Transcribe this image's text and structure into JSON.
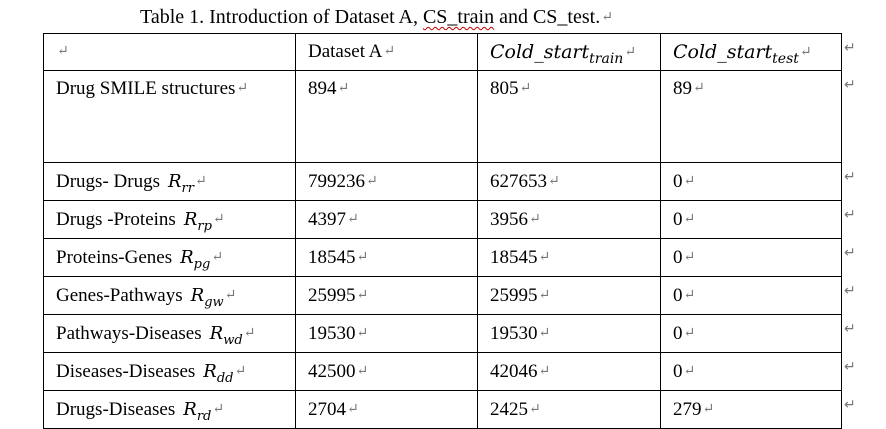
{
  "caption": {
    "prefix": "Table 1. Introduction of Dataset A, ",
    "cs_train": "CS_train",
    "suffix": " and CS_test."
  },
  "paragraph_mark": "↵",
  "header": {
    "col0": "",
    "col1": "Dataset A",
    "col2": {
      "base": "Cold_start",
      "sub": "train"
    },
    "col3": {
      "base": "Cold_start",
      "sub": "test"
    }
  },
  "rows": [
    {
      "label": "Drug SMILE structures",
      "sym": "",
      "sub": "",
      "dataset_a": "894",
      "train": "805",
      "test": "89"
    },
    {
      "label": "Drugs- Drugs",
      "sym": "R",
      "sub": "rr",
      "dataset_a": "799236",
      "train": "627653",
      "test": "0"
    },
    {
      "label": "Drugs -Proteins",
      "sym": "R",
      "sub": "rp",
      "dataset_a": "4397",
      "train": "3956",
      "test": "0"
    },
    {
      "label": "Proteins-Genes",
      "sym": "R",
      "sub": "pg",
      "dataset_a": "18545",
      "train": "18545",
      "test": "0"
    },
    {
      "label": "Genes-Pathways",
      "sym": "R",
      "sub": "gw",
      "dataset_a": "25995",
      "train": "25995",
      "test": "0"
    },
    {
      "label": "Pathways-Diseases",
      "sym": "R",
      "sub": "wd",
      "dataset_a": "19530",
      "train": "19530",
      "test": "0"
    },
    {
      "label": "Diseases-Diseases",
      "sym": "R",
      "sub": "dd",
      "dataset_a": "42500",
      "train": "42046",
      "test": "0"
    },
    {
      "label": "Drugs-Diseases",
      "sym": "R",
      "sub": "rd",
      "dataset_a": "2704",
      "train": "2425",
      "test": "279"
    }
  ]
}
